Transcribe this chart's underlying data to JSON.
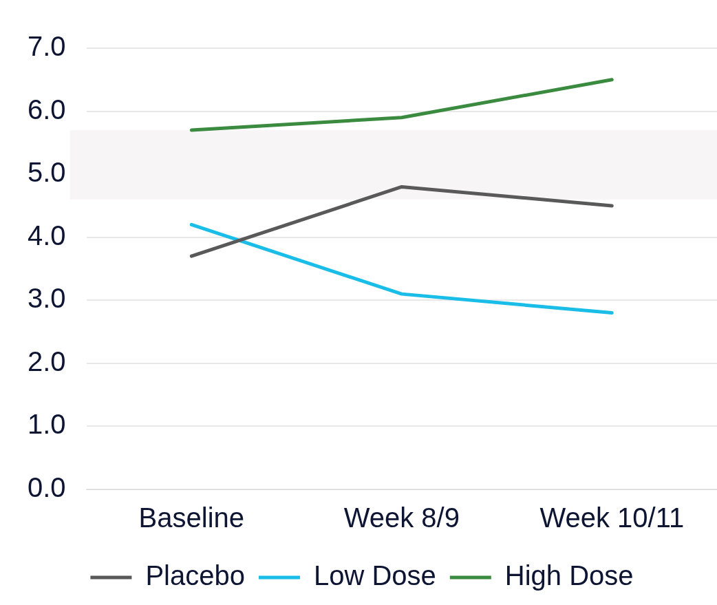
{
  "chart_data": {
    "type": "line",
    "categories": [
      "Baseline",
      "Week 8/9",
      "Week 10/11"
    ],
    "series": [
      {
        "name": "Placebo",
        "color": "#595959",
        "values": [
          3.7,
          4.8,
          4.5
        ]
      },
      {
        "name": "Low Dose",
        "color": "#19bde8",
        "values": [
          4.2,
          3.1,
          2.8
        ]
      },
      {
        "name": "High Dose",
        "color": "#3a8b3f",
        "values": [
          5.7,
          5.9,
          6.5
        ]
      }
    ],
    "ylim": [
      0,
      7
    ],
    "yticks": [
      {
        "value": 0,
        "label": "0.0"
      },
      {
        "value": 1,
        "label": "1.0"
      },
      {
        "value": 2,
        "label": "2.0"
      },
      {
        "value": 3,
        "label": "3.0"
      },
      {
        "value": 4,
        "label": "4.0"
      },
      {
        "value": 5,
        "label": "5.0"
      },
      {
        "value": 6,
        "label": "6.0"
      },
      {
        "value": 7,
        "label": "7.0"
      }
    ],
    "bands": [
      {
        "axis": "y",
        "from": 4.6,
        "to": 5.7,
        "color": "#f8f5f6"
      }
    ],
    "grid": "y",
    "legend": "bottom",
    "marker": "none",
    "line_style": "solid"
  }
}
